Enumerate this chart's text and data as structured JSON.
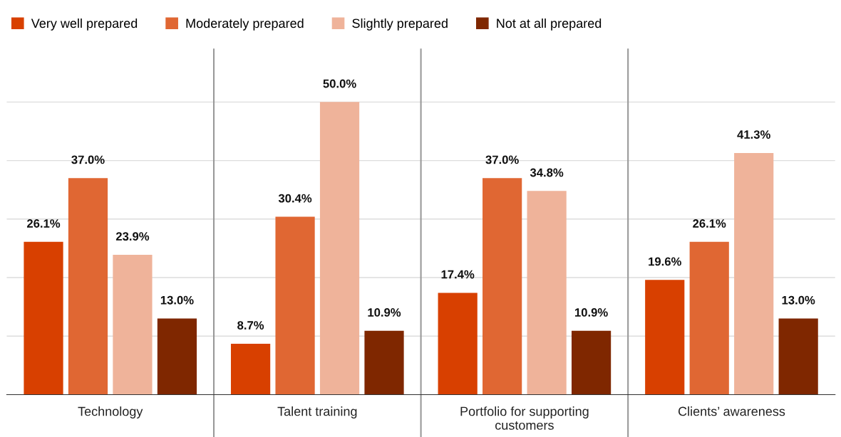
{
  "chart_data": {
    "type": "bar",
    "categories": [
      "Technology",
      "Talent training",
      "Portfolio for supporting\ncustomers",
      "Clients’ awareness"
    ],
    "series": [
      {
        "name": "Very well prepared",
        "color": "#d84000",
        "values": [
          26.1,
          8.7,
          17.4,
          19.6
        ],
        "value_labels": [
          "26.1%",
          "8.7%",
          "17.4%",
          "19.6%"
        ]
      },
      {
        "name": "Moderately prepared",
        "color": "#e06733",
        "values": [
          37.0,
          30.4,
          37.0,
          26.1
        ],
        "value_labels": [
          "37.0%",
          "30.4%",
          "37.0%",
          "26.1%"
        ]
      },
      {
        "name": "Slightly prepared",
        "color": "#efb39a",
        "values": [
          23.9,
          50.0,
          34.8,
          41.3
        ],
        "value_labels": [
          "23.9%",
          "50.0%",
          "34.8%",
          "41.3%"
        ]
      },
      {
        "name": "Not at all prepared",
        "color": "#7f2700",
        "values": [
          13.0,
          10.9,
          10.9,
          13.0
        ],
        "value_labels": [
          "13.0%",
          "10.9%",
          "10.9%",
          "13.0%"
        ]
      }
    ],
    "tick_labels": "x",
    "grid": "y",
    "legend": "top left"
  }
}
